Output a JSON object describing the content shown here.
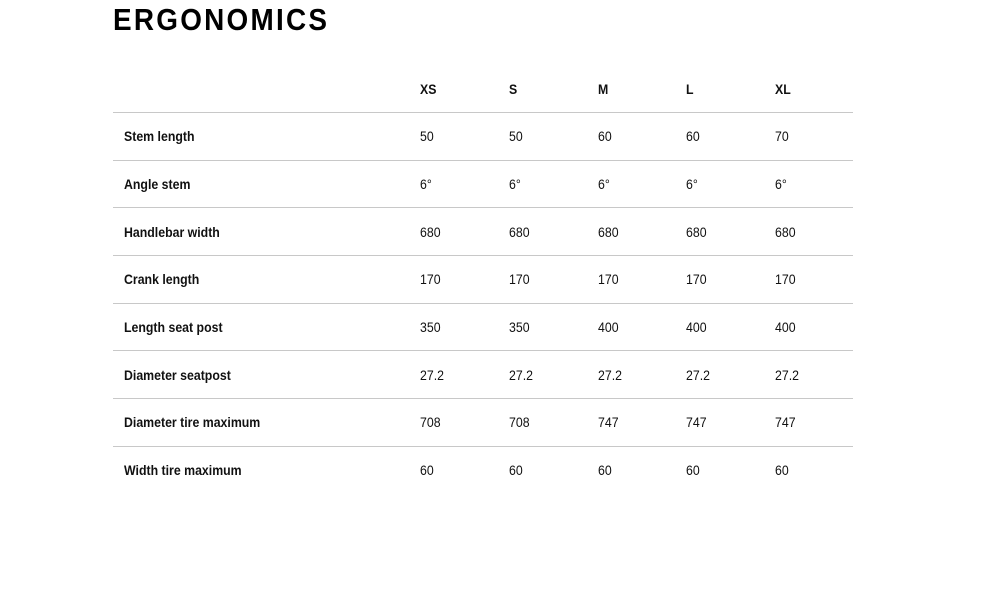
{
  "title": "ERGONOMICS",
  "columns": [
    "XS",
    "S",
    "M",
    "L",
    "XL"
  ],
  "rows": [
    {
      "label": "Stem length",
      "values": [
        "50",
        "50",
        "60",
        "60",
        "70"
      ]
    },
    {
      "label": "Angle stem",
      "values": [
        "6°",
        "6°",
        "6°",
        "6°",
        "6°"
      ]
    },
    {
      "label": "Handlebar width",
      "values": [
        "680",
        "680",
        "680",
        "680",
        "680"
      ]
    },
    {
      "label": "Crank length",
      "values": [
        "170",
        "170",
        "170",
        "170",
        "170"
      ]
    },
    {
      "label": "Length seat post",
      "values": [
        "350",
        "350",
        "400",
        "400",
        "400"
      ]
    },
    {
      "label": "Diameter seatpost",
      "values": [
        "27.2",
        "27.2",
        "27.2",
        "27.2",
        "27.2"
      ]
    },
    {
      "label": "Diameter tire maximum",
      "values": [
        "708",
        "708",
        "747",
        "747",
        "747"
      ]
    },
    {
      "label": "Width tire maximum",
      "values": [
        "60",
        "60",
        "60",
        "60",
        "60"
      ]
    }
  ]
}
